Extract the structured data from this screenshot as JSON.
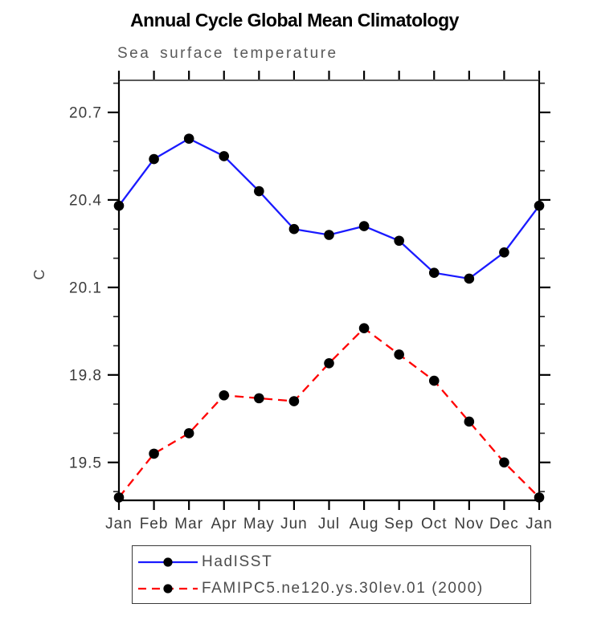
{
  "chart_data": {
    "type": "line",
    "title": "Annual Cycle Global Mean Climatology",
    "subtitle": "Sea surface temperature",
    "ylabel": "C",
    "x_categories": [
      "Jan",
      "Feb",
      "Mar",
      "Apr",
      "May",
      "Jun",
      "Jul",
      "Aug",
      "Sep",
      "Oct",
      "Nov",
      "Dec",
      "Jan"
    ],
    "y_tick_labels": [
      "19.5",
      "19.8",
      "20.1",
      "20.4",
      "20.7"
    ],
    "y_ticks_major": [
      19.5,
      19.8,
      20.1,
      20.4,
      20.7
    ],
    "y_ticks_minor": [
      19.4,
      19.6,
      19.7,
      19.9,
      20.0,
      20.2,
      20.3,
      20.5,
      20.6,
      20.8
    ],
    "y_minor_step": 0.1,
    "ylim": [
      19.37,
      20.81
    ],
    "grid": false,
    "legend_position": "bottom-left-box",
    "marker": "filled-circle",
    "marker_color": "#000000",
    "frame_color": "#000000",
    "top_frame_color": "#5a5a5a",
    "series": [
      {
        "name": "HadISST",
        "line_style": "solid",
        "line_color": "#1a1aff",
        "values": [
          20.38,
          20.54,
          20.61,
          20.55,
          20.43,
          20.3,
          20.28,
          20.31,
          20.26,
          20.15,
          20.13,
          20.22,
          20.38
        ]
      },
      {
        "name": "FAMIPC5.ne120.ys.30lev.01 (2000)",
        "line_style": "dashed",
        "line_color": "#ff0000",
        "values": [
          19.38,
          19.53,
          19.6,
          19.73,
          19.72,
          19.71,
          19.84,
          19.96,
          19.87,
          19.78,
          19.64,
          19.5,
          19.38
        ]
      }
    ]
  }
}
